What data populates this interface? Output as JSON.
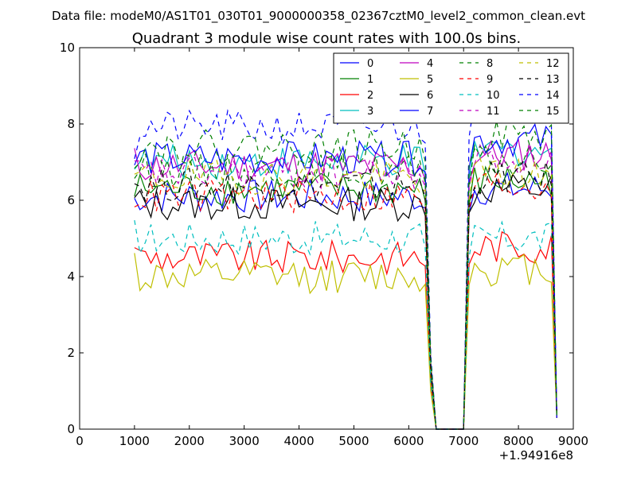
{
  "chart_data": {
    "type": "line",
    "suptitle": "Data file: modeM0/AS1T01_030T01_9000000358_02367cztM0_level2_common_clean.evt",
    "title": "Quadrant 3 module wise count rates with 100.0s bins.",
    "xlabel": "",
    "ylabel": "",
    "x_offset_label": "+1.94916e8",
    "xlim": [
      0,
      9000
    ],
    "ylim": [
      0,
      10
    ],
    "xticks": [
      0,
      1000,
      2000,
      3000,
      4000,
      5000,
      6000,
      7000,
      8000,
      9000
    ],
    "yticks": [
      0,
      2,
      4,
      6,
      8,
      10
    ],
    "grid": false,
    "legend_position": "top-right",
    "legend_columns": 4,
    "x_segments": [
      {
        "start": 1000,
        "end": 6200,
        "step": 100
      },
      {
        "start": 6300,
        "end": 7100,
        "step": 100
      },
      {
        "start": 7200,
        "end": 8600,
        "step": 100
      },
      {
        "start": 8700,
        "end": 8700,
        "step": 100
      }
    ],
    "series": [
      {
        "name": "0",
        "color": "#0000ff",
        "dash": "solid",
        "level": 6.1,
        "head": 6.0,
        "plateau2": 6.3,
        "final": 0.3
      },
      {
        "name": "1",
        "color": "#008000",
        "dash": "solid",
        "level": 6.3,
        "head": 6.2,
        "plateau2": 6.5,
        "final": 0.3
      },
      {
        "name": "2",
        "color": "#ff0000",
        "dash": "solid",
        "level": 4.5,
        "head": 5.0,
        "plateau2": 4.8,
        "final": 0.3
      },
      {
        "name": "3",
        "color": "#00bfbf",
        "dash": "solid",
        "level": 7.0,
        "head": 7.2,
        "plateau2": 7.3,
        "final": 0.3
      },
      {
        "name": "4",
        "color": "#bf00bf",
        "dash": "solid",
        "level": 6.9,
        "head": 7.0,
        "plateau2": 7.2,
        "final": 0.3
      },
      {
        "name": "5",
        "color": "#bfbf00",
        "dash": "solid",
        "level": 4.0,
        "head": 4.4,
        "plateau2": 4.2,
        "final": 0.3
      },
      {
        "name": "6",
        "color": "#000000",
        "dash": "solid",
        "level": 5.9,
        "head": 6.0,
        "plateau2": 6.3,
        "final": 0.3
      },
      {
        "name": "7",
        "color": "#0000ff",
        "dash": "solid",
        "level": 7.1,
        "head": 7.0,
        "plateau2": 7.6,
        "final": 0.3
      },
      {
        "name": "8",
        "color": "#008000",
        "dash": "dashed",
        "level": 6.8,
        "head": 6.8,
        "plateau2": 7.0,
        "final": 0.3
      },
      {
        "name": "9",
        "color": "#ff0000",
        "dash": "dashed",
        "level": 6.1,
        "head": 6.2,
        "plateau2": 6.4,
        "final": 0.3
      },
      {
        "name": "10",
        "color": "#00bfbf",
        "dash": "dashed",
        "level": 5.0,
        "head": 5.1,
        "plateau2": 5.0,
        "final": 0.3
      },
      {
        "name": "11",
        "color": "#bf00bf",
        "dash": "dashed",
        "level": 6.7,
        "head": 6.8,
        "plateau2": 7.1,
        "final": 0.3
      },
      {
        "name": "12",
        "color": "#bfbf00",
        "dash": "dashed",
        "level": 6.6,
        "head": 6.6,
        "plateau2": 6.7,
        "final": 0.3
      },
      {
        "name": "13",
        "color": "#000000",
        "dash": "dashed",
        "level": 6.4,
        "head": 6.5,
        "plateau2": 6.6,
        "final": 0.3
      },
      {
        "name": "14",
        "color": "#0000ff",
        "dash": "dashed",
        "level": 7.9,
        "head": 7.3,
        "plateau2": 8.5,
        "final": 0.3
      },
      {
        "name": "15",
        "color": "#008000",
        "dash": "dashed",
        "level": 7.4,
        "head": 7.2,
        "plateau2": 7.7,
        "final": 0.3
      }
    ],
    "gap_profile": {
      "description": "rates fall to zero between ~6400 and ~7000, then recover",
      "x": [
        6300,
        6400,
        6500,
        6600,
        6700,
        6800,
        6900,
        7000,
        7100
      ],
      "factor": [
        0.95,
        0.25,
        0.0,
        0.0,
        0.0,
        0.0,
        0.0,
        0.0,
        0.9
      ]
    }
  }
}
